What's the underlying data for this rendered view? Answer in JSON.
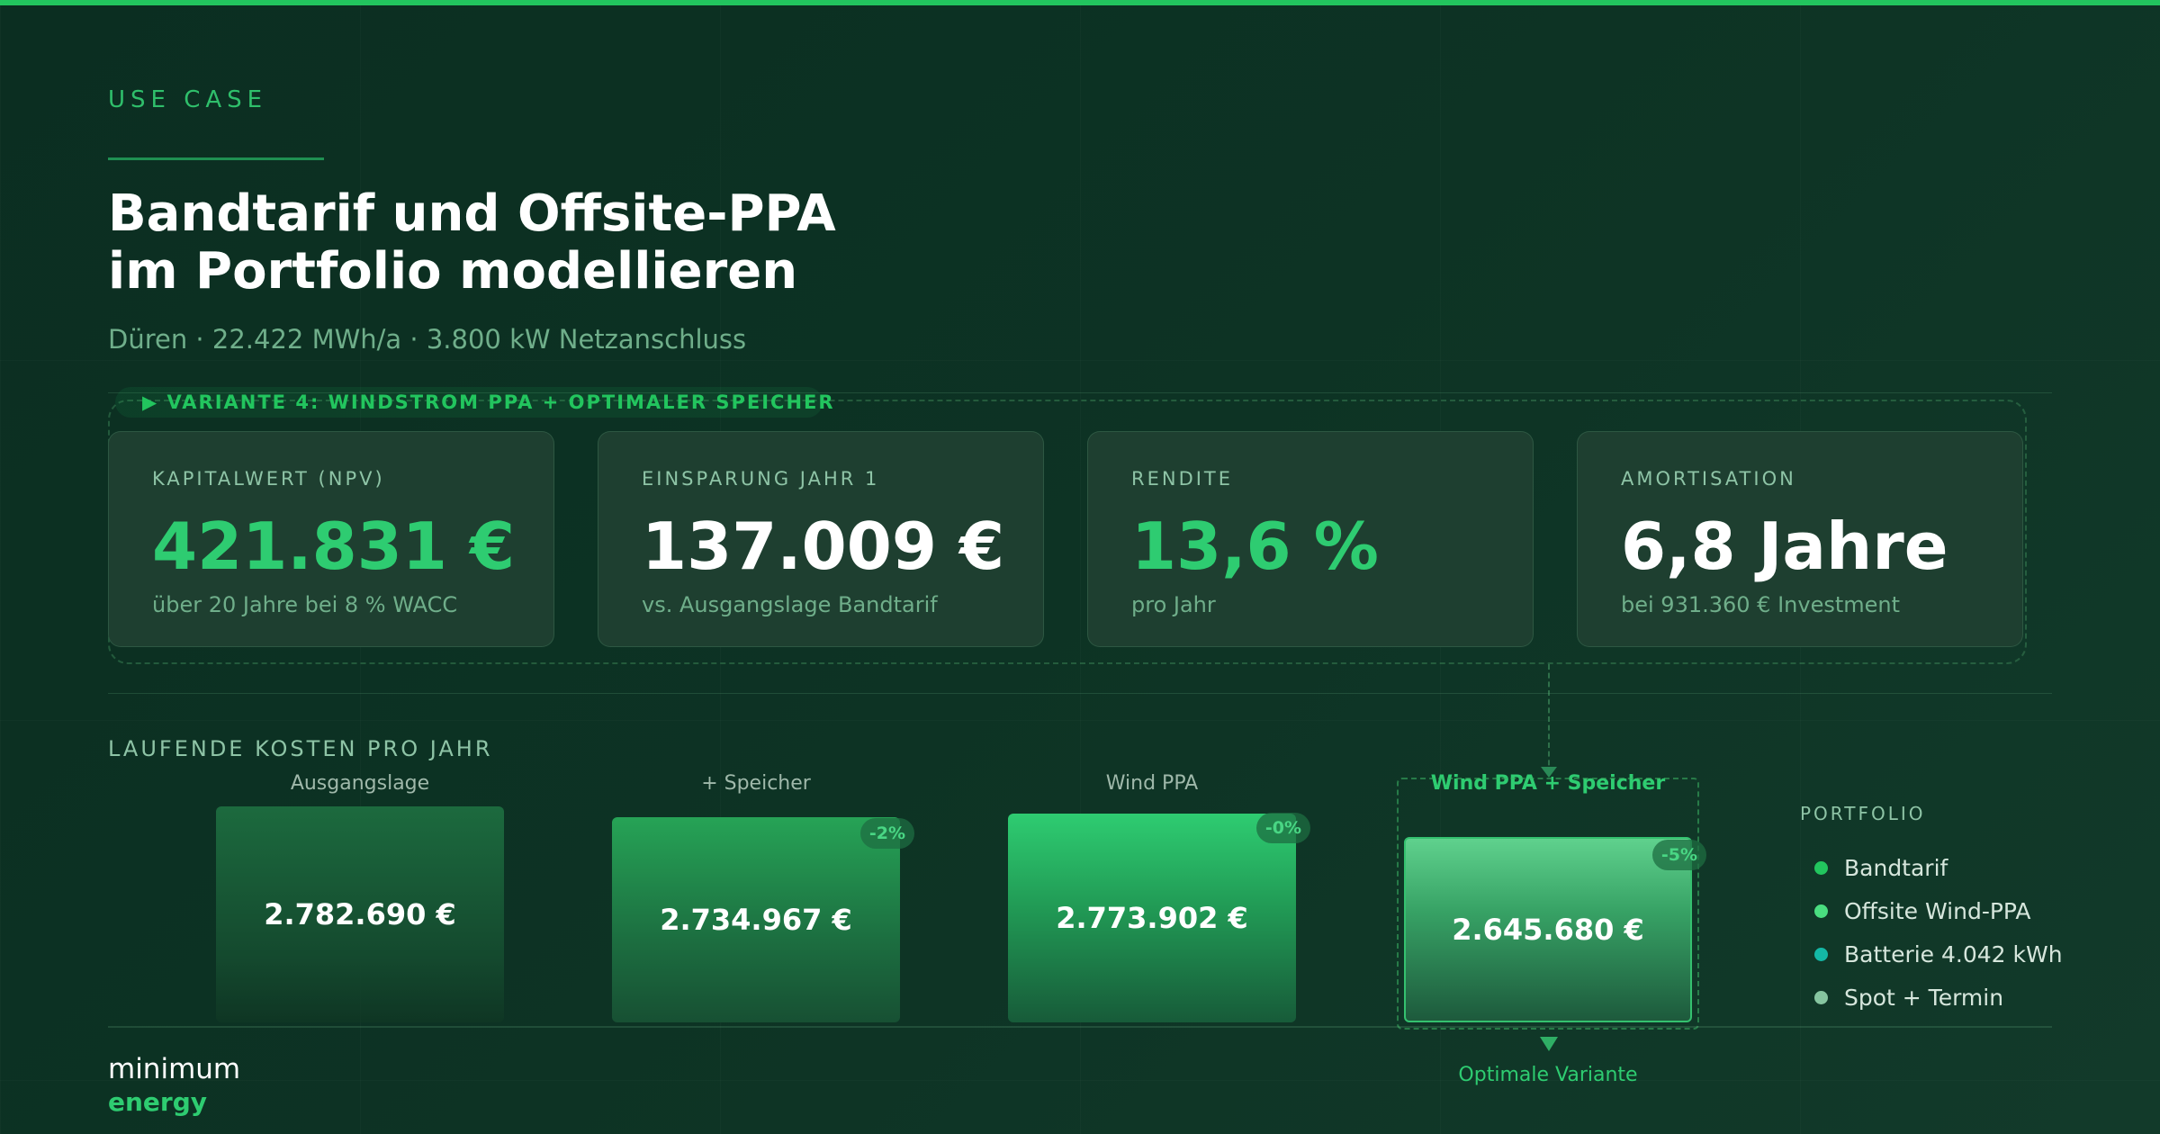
{
  "header": {
    "eyebrow": "USE CASE",
    "title_line1": "Bandtarif und Offsite-PPA",
    "title_line2": "im Portfolio modellieren",
    "subtitle": "Düren · 22.422 MWh/a · 3.800 kW Netzanschluss"
  },
  "variant": {
    "label": "▶ VARIANTE 4: WINDSTROM PPA + OPTIMALER SPEICHER"
  },
  "kpis": [
    {
      "label": "KAPITALWERT (NPV)",
      "value": "421.831 €",
      "sub": "über 20 Jahre bei 8 % WACC",
      "accent": "#2ecc71"
    },
    {
      "label": "EINSPARUNG JAHR 1",
      "value": "137.009 €",
      "sub": "vs. Ausgangslage Bandtarif",
      "accent": "#ffffff"
    },
    {
      "label": "RENDITE",
      "value": "13,6 %",
      "sub": "pro Jahr",
      "accent": "#2ecc71"
    },
    {
      "label": "AMORTISATION",
      "value": "6,8 Jahre",
      "sub": "bei 931.360 € Investment",
      "accent": "#ffffff"
    }
  ],
  "costs": {
    "title": "LAUFENDE KOSTEN PRO JAHR",
    "bars": [
      {
        "label": "Ausgangslage",
        "value_text": "2.782.690 €",
        "value": 2782690,
        "badge": ""
      },
      {
        "label": "+ Speicher",
        "value_text": "2.734.967 €",
        "value": 2734967,
        "badge": "-2%"
      },
      {
        "label": "Wind PPA",
        "value_text": "2.773.902 €",
        "value": 2773902,
        "badge": "-0%"
      },
      {
        "label": "Wind PPA + Speicher",
        "value_text": "2.645.680 €",
        "value": 2645680,
        "badge": "-5%"
      }
    ],
    "optimal_label": "Optimale Variante"
  },
  "portfolio": {
    "title": "PORTFOLIO",
    "items": [
      {
        "label": "Bandtarif",
        "color": "#22c55e"
      },
      {
        "label": "Offsite Wind-PPA",
        "color": "#4ade80"
      },
      {
        "label": "Batterie 4.042 kWh",
        "color": "#14b8a6"
      },
      {
        "label": "Spot + Termin",
        "color": "#86c5a0"
      }
    ]
  },
  "brand": {
    "line1": "minimum",
    "line2": "energy"
  }
}
